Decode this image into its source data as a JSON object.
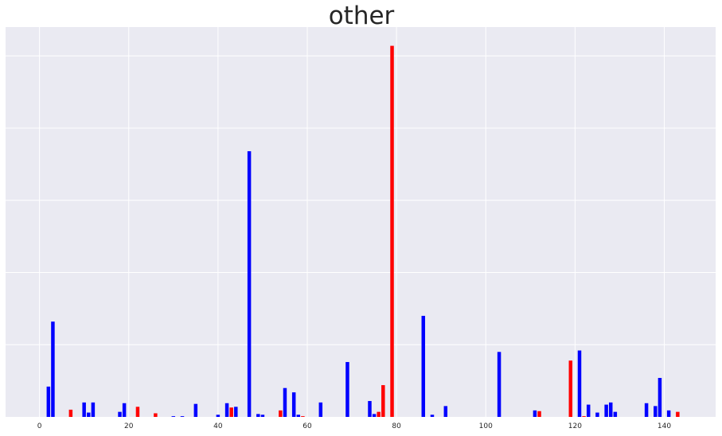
{
  "chart_data": {
    "type": "bar",
    "title": "other",
    "xlabel": "",
    "ylabel": "",
    "xlim": [
      -7.6,
      151.5
    ],
    "ylim": [
      0,
      27
    ],
    "grid": true,
    "x_ticks": [
      0,
      20,
      40,
      60,
      80,
      100,
      120,
      140
    ],
    "y_ticks_labeled": false,
    "colors": {
      "blue": "#0000ff",
      "red": "#ff0000",
      "background": "#eaeaf2",
      "grid": "#ffffff"
    },
    "bars": [
      {
        "x": 2,
        "value": 2.1,
        "color": "blue"
      },
      {
        "x": 3,
        "value": 6.6,
        "color": "blue"
      },
      {
        "x": 7,
        "value": 0.5,
        "color": "red"
      },
      {
        "x": 10,
        "value": 1.0,
        "color": "blue"
      },
      {
        "x": 11,
        "value": 0.3,
        "color": "blue"
      },
      {
        "x": 12,
        "value": 1.0,
        "color": "blue"
      },
      {
        "x": 18,
        "value": 0.35,
        "color": "blue"
      },
      {
        "x": 19,
        "value": 0.95,
        "color": "blue"
      },
      {
        "x": 22,
        "value": 0.7,
        "color": "red"
      },
      {
        "x": 26,
        "value": 0.25,
        "color": "red"
      },
      {
        "x": 30,
        "value": 0.05,
        "color": "blue"
      },
      {
        "x": 32,
        "value": 0.05,
        "color": "blue"
      },
      {
        "x": 35,
        "value": 0.9,
        "color": "blue"
      },
      {
        "x": 40,
        "value": 0.15,
        "color": "blue"
      },
      {
        "x": 42,
        "value": 0.95,
        "color": "blue"
      },
      {
        "x": 43,
        "value": 0.65,
        "color": "red"
      },
      {
        "x": 44,
        "value": 0.7,
        "color": "blue"
      },
      {
        "x": 47,
        "value": 18.4,
        "color": "blue"
      },
      {
        "x": 49,
        "value": 0.2,
        "color": "blue"
      },
      {
        "x": 50,
        "value": 0.15,
        "color": "blue"
      },
      {
        "x": 54,
        "value": 0.45,
        "color": "red"
      },
      {
        "x": 55,
        "value": 2.0,
        "color": "blue"
      },
      {
        "x": 57,
        "value": 1.7,
        "color": "blue"
      },
      {
        "x": 58,
        "value": 0.15,
        "color": "blue"
      },
      {
        "x": 59,
        "value": 0.05,
        "color": "red"
      },
      {
        "x": 63,
        "value": 1.0,
        "color": "blue"
      },
      {
        "x": 69,
        "value": 3.8,
        "color": "blue"
      },
      {
        "x": 74,
        "value": 1.1,
        "color": "blue"
      },
      {
        "x": 75,
        "value": 0.2,
        "color": "blue"
      },
      {
        "x": 76,
        "value": 0.35,
        "color": "red"
      },
      {
        "x": 77,
        "value": 2.2,
        "color": "red"
      },
      {
        "x": 79,
        "value": 25.7,
        "color": "red"
      },
      {
        "x": 86,
        "value": 7.0,
        "color": "blue"
      },
      {
        "x": 88,
        "value": 0.15,
        "color": "blue"
      },
      {
        "x": 91,
        "value": 0.75,
        "color": "blue"
      },
      {
        "x": 103,
        "value": 4.5,
        "color": "blue"
      },
      {
        "x": 111,
        "value": 0.45,
        "color": "blue"
      },
      {
        "x": 112,
        "value": 0.4,
        "color": "red"
      },
      {
        "x": 119,
        "value": 3.9,
        "color": "red"
      },
      {
        "x": 121,
        "value": 4.6,
        "color": "blue"
      },
      {
        "x": 122,
        "value": 0.05,
        "color": "red"
      },
      {
        "x": 123,
        "value": 0.85,
        "color": "blue"
      },
      {
        "x": 125,
        "value": 0.3,
        "color": "blue"
      },
      {
        "x": 127,
        "value": 0.85,
        "color": "blue"
      },
      {
        "x": 128,
        "value": 1.0,
        "color": "blue"
      },
      {
        "x": 129,
        "value": 0.35,
        "color": "blue"
      },
      {
        "x": 136,
        "value": 0.95,
        "color": "blue"
      },
      {
        "x": 138,
        "value": 0.75,
        "color": "blue"
      },
      {
        "x": 139,
        "value": 2.7,
        "color": "blue"
      },
      {
        "x": 141,
        "value": 0.45,
        "color": "blue"
      },
      {
        "x": 143,
        "value": 0.35,
        "color": "red"
      }
    ]
  }
}
